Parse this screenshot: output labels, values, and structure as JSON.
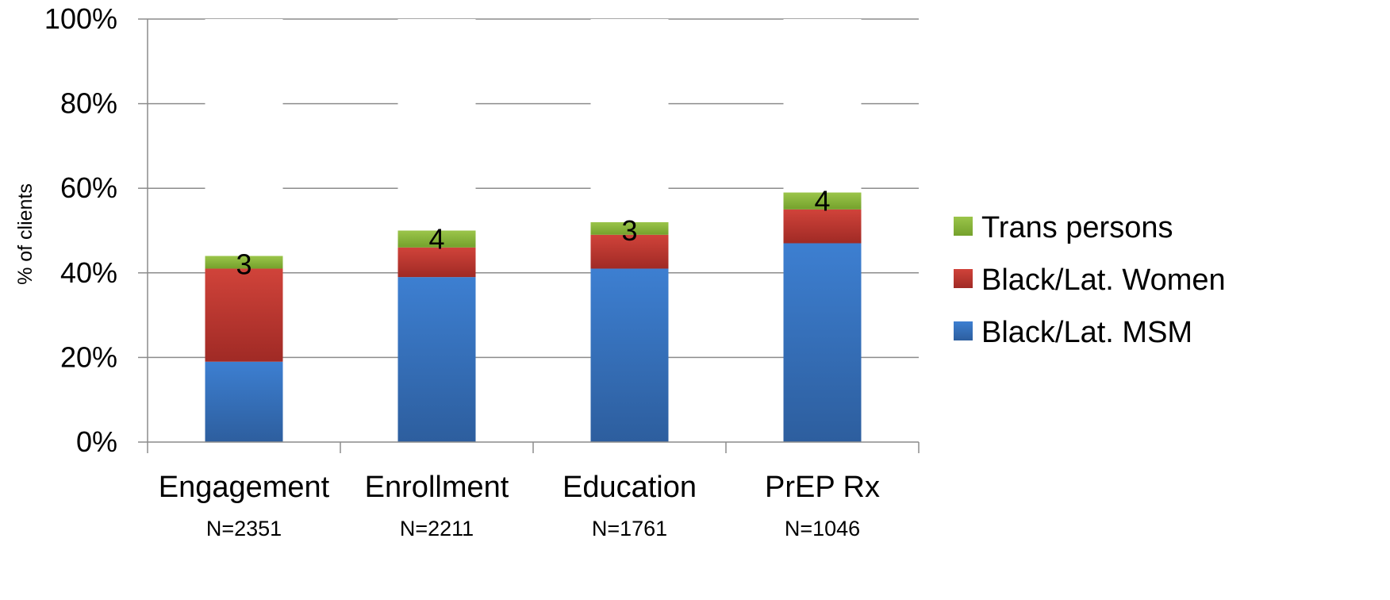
{
  "chart_data": {
    "type": "bar",
    "stacked": true,
    "categories": [
      "Engagement",
      "Enrollment",
      "Education",
      "PrEP Rx"
    ],
    "category_sublabels": [
      "N=2351",
      "N=2211",
      "N=1761",
      "N=1046"
    ],
    "series": [
      {
        "name": "Black/Lat. MSM",
        "values": [
          19,
          39,
          41,
          47
        ],
        "color": "#3a75c4"
      },
      {
        "name": "Black/Lat. Women",
        "values": [
          22,
          7,
          8,
          8
        ],
        "color": "#c0392b"
      },
      {
        "name": "Trans persons",
        "values": [
          3,
          4,
          3,
          4
        ],
        "color": "#8cb63c"
      }
    ],
    "remainder_to": 100,
    "remainder_color": "#ffffff",
    "data_labels": [
      "3",
      "4",
      "3",
      "4"
    ],
    "ylabel": "% of clients",
    "ylim": [
      0,
      100
    ],
    "yticks": [
      0,
      20,
      40,
      60,
      80,
      100
    ],
    "ytick_labels": [
      "0%",
      "20%",
      "40%",
      "60%",
      "80%",
      "100%"
    ],
    "grid": true,
    "legend_position": "right"
  }
}
